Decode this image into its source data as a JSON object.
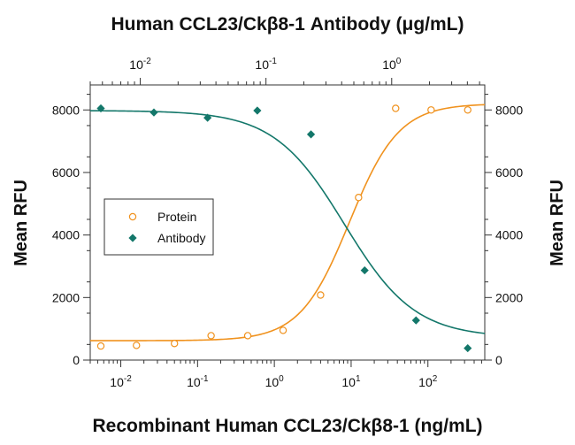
{
  "chart_data": {
    "type": "scatter",
    "title": "Human CCL23/Ckβ8-1 Antibody (μg/mL)",
    "xlabel": "Recombinant Human CCL23/Ckβ8-1 (ng/mL)",
    "ylabel": "Mean RFU",
    "ylabel_right": "Mean RFU",
    "x_scale": "log",
    "xlim": [
      0.004,
      550
    ],
    "ylim": [
      0,
      8800
    ],
    "x_ticks": [
      {
        "value": 0.01,
        "base": "10",
        "exp": "-2"
      },
      {
        "value": 0.1,
        "base": "10",
        "exp": "-1"
      },
      {
        "value": 1,
        "base": "10",
        "exp": "0"
      },
      {
        "value": 10,
        "base": "10",
        "exp": "1"
      },
      {
        "value": 100,
        "base": "10",
        "exp": "2"
      }
    ],
    "y_ticks": [
      "0",
      "2000",
      "4000",
      "6000",
      "8000"
    ],
    "top_axis": {
      "xlim": [
        0.004,
        5.5
      ],
      "ticks": [
        {
          "value": 0.01,
          "base": "10",
          "exp": "-2"
        },
        {
          "value": 0.1,
          "base": "10",
          "exp": "-1"
        },
        {
          "value": 1,
          "base": "10",
          "exp": "0"
        }
      ]
    },
    "legend_position": "left",
    "series": [
      {
        "name": "Protein",
        "marker": "open-circle",
        "color": "#f0921e",
        "x": [
          0.0055,
          0.016,
          0.05,
          0.15,
          0.45,
          1.3,
          4.0,
          12.5,
          38,
          110,
          330
        ],
        "y": [
          450,
          470,
          530,
          780,
          780,
          950,
          2080,
          5200,
          8050,
          8000,
          8000
        ],
        "fit": {
          "bottom": 620,
          "top": 8200,
          "ec50": 9.5,
          "hill": 1.35,
          "axis": "bottom"
        }
      },
      {
        "name": "Antibody",
        "marker": "filled-diamond",
        "color": "#13776a",
        "x": [
          0.0055,
          0.027,
          0.135,
          0.6,
          3.0,
          15,
          70,
          330
        ],
        "y": [
          8050,
          7920,
          7750,
          7980,
          7220,
          2870,
          1270,
          380
        ],
        "fit": {
          "bottom": 720,
          "top": 7980,
          "ec50": 0.42,
          "hill": 1.55,
          "axis": "top"
        }
      }
    ]
  }
}
